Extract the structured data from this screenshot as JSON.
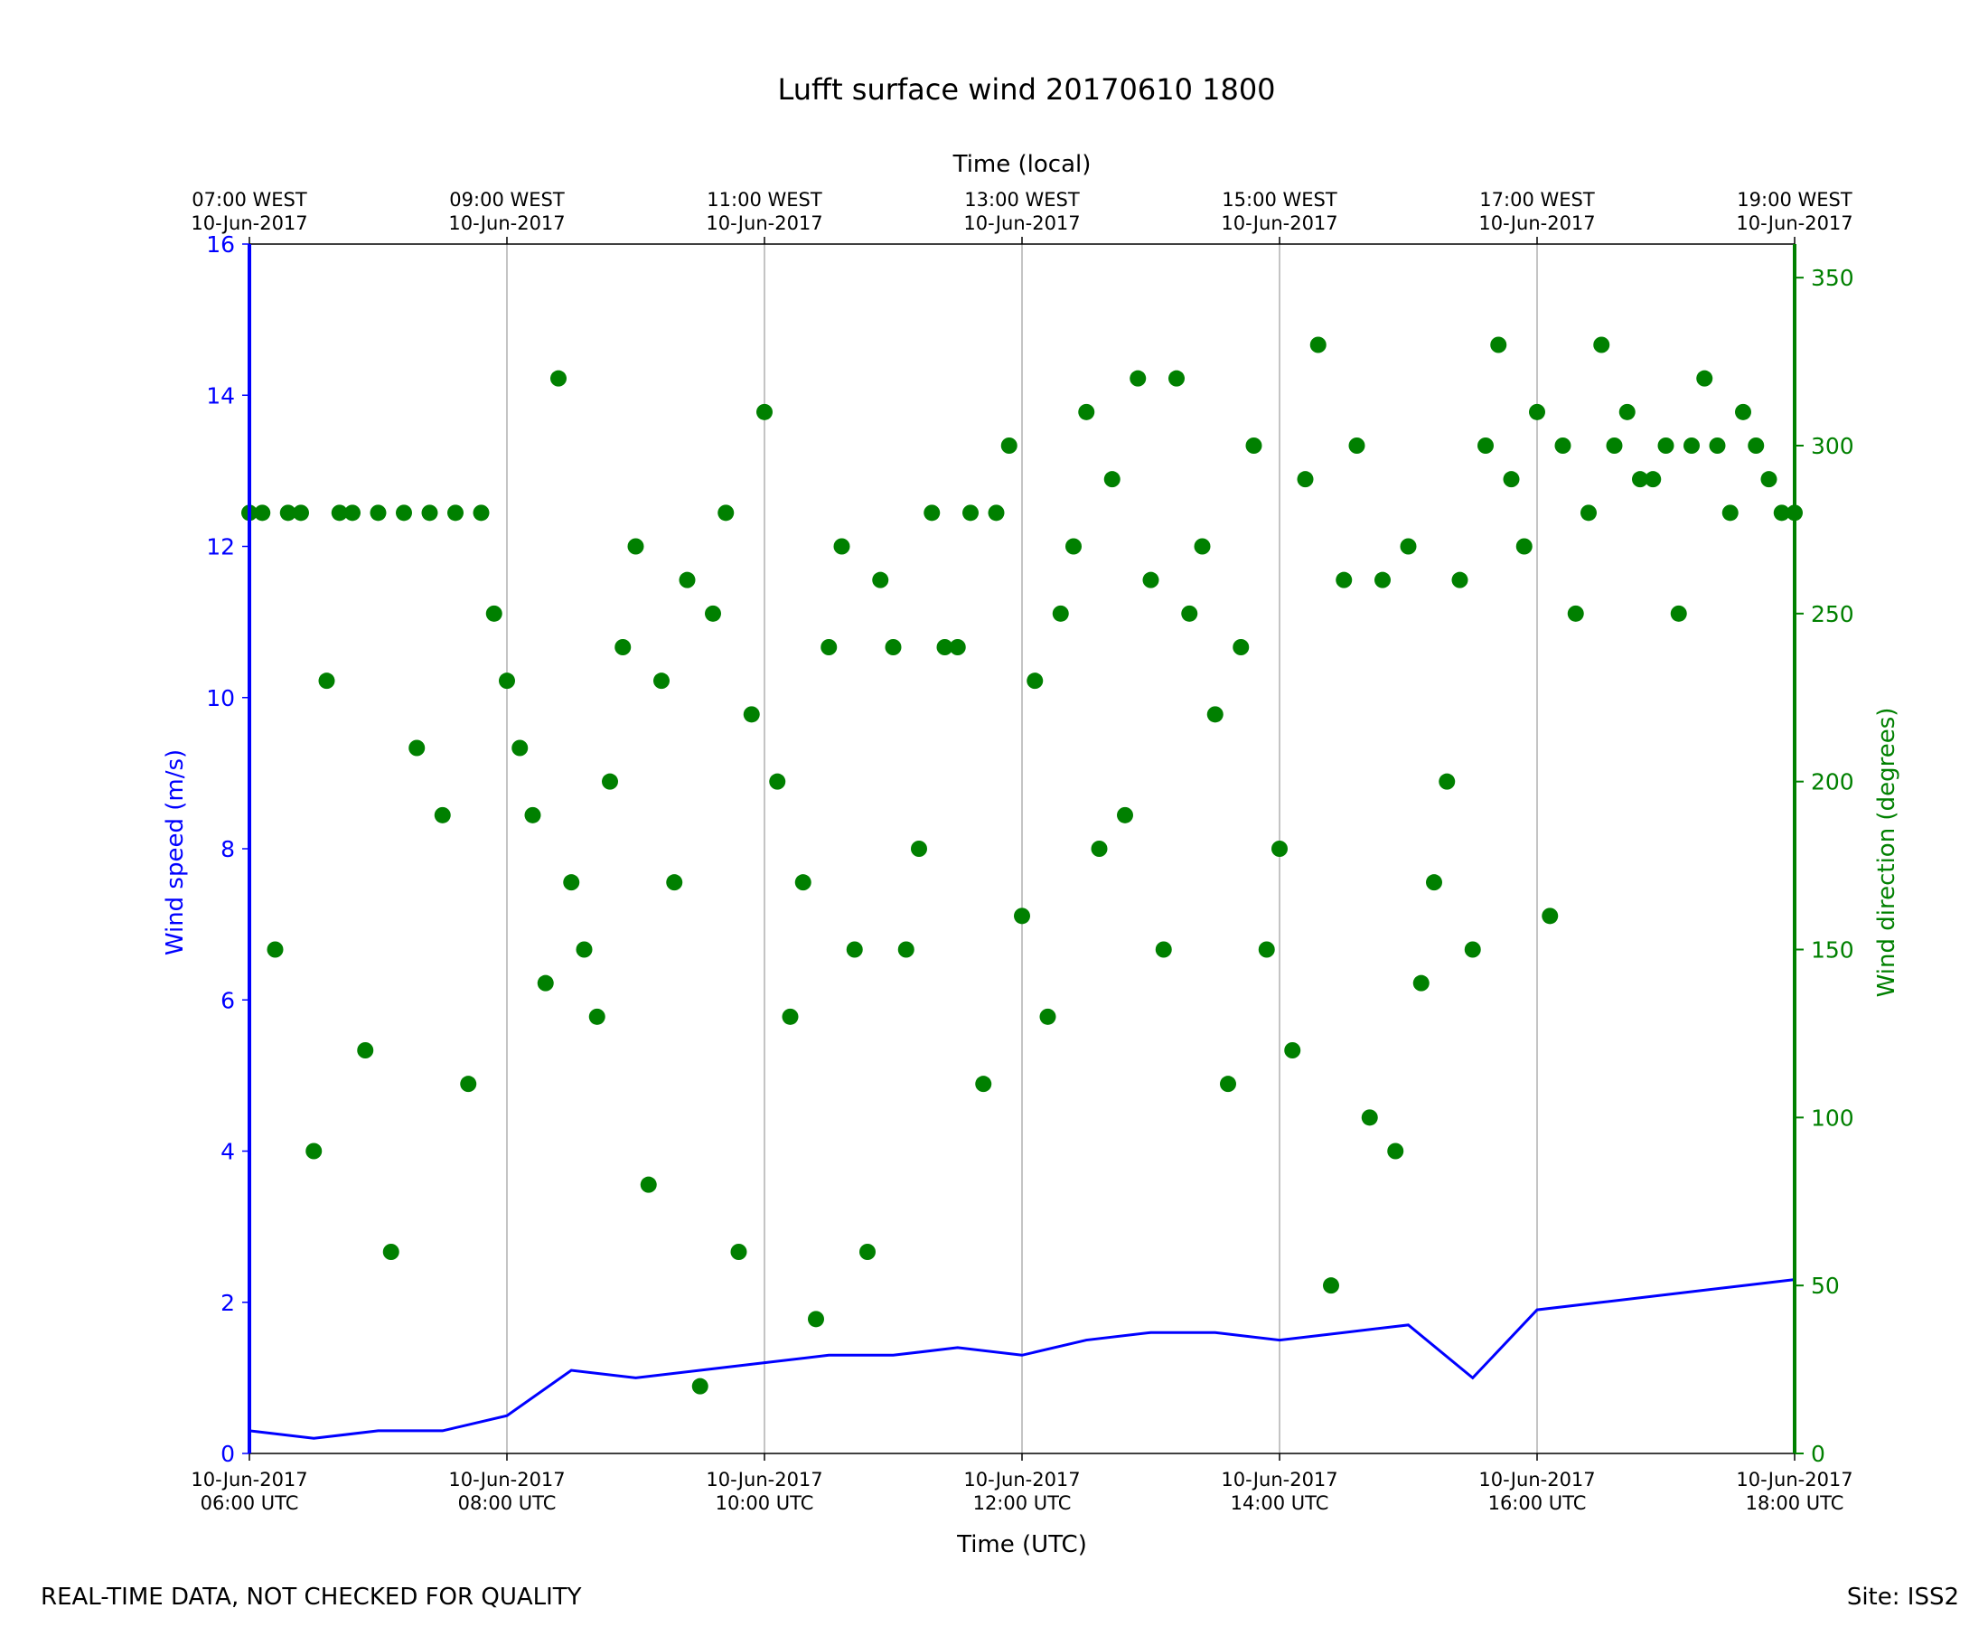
{
  "chart_data": {
    "type": "line+scatter",
    "title": "Lufft surface wind 20170610 1800",
    "x_axis": {
      "label": "Time (UTC)",
      "range_utc": [
        "2017-06-10 06:00",
        "2017-06-10 18:00"
      ],
      "ticks": [
        {
          "date": "10-Jun-2017",
          "time": "06:00 UTC"
        },
        {
          "date": "10-Jun-2017",
          "time": "08:00 UTC"
        },
        {
          "date": "10-Jun-2017",
          "time": "10:00 UTC"
        },
        {
          "date": "10-Jun-2017",
          "time": "12:00 UTC"
        },
        {
          "date": "10-Jun-2017",
          "time": "14:00 UTC"
        },
        {
          "date": "10-Jun-2017",
          "time": "16:00 UTC"
        },
        {
          "date": "10-Jun-2017",
          "time": "18:00 UTC"
        }
      ],
      "grid": true
    },
    "x2_axis": {
      "label": "Time (local)",
      "ticks": [
        {
          "time": "07:00 WEST",
          "date": "10-Jun-2017"
        },
        {
          "time": "09:00 WEST",
          "date": "10-Jun-2017"
        },
        {
          "time": "11:00 WEST",
          "date": "10-Jun-2017"
        },
        {
          "time": "13:00 WEST",
          "date": "10-Jun-2017"
        },
        {
          "time": "15:00 WEST",
          "date": "10-Jun-2017"
        },
        {
          "time": "17:00 WEST",
          "date": "10-Jun-2017"
        },
        {
          "time": "19:00 WEST",
          "date": "10-Jun-2017"
        }
      ]
    },
    "y_axis": {
      "label": "Wind speed (m/s)",
      "range": [
        0,
        16
      ],
      "ticks": [
        0,
        2,
        4,
        6,
        8,
        10,
        12,
        14,
        16
      ],
      "color": "#0000ff"
    },
    "y2_axis": {
      "label": "Wind direction (degrees)",
      "range": [
        0,
        360
      ],
      "ticks": [
        0,
        50,
        100,
        150,
        200,
        250,
        300,
        350
      ],
      "color": "#008000"
    },
    "series": [
      {
        "name": "Wind speed (m/s)",
        "type": "line",
        "color": "#0000ff",
        "axis": "left",
        "x_hours_utc": [
          6.0,
          6.5,
          7.0,
          7.5,
          8.0,
          8.5,
          9.0,
          9.5,
          10.0,
          10.5,
          11.0,
          11.5,
          12.0,
          12.5,
          13.0,
          13.5,
          14.0,
          14.5,
          15.0,
          15.5,
          16.0,
          16.5,
          17.0,
          17.5,
          18.0
        ],
        "values": [
          0.3,
          0.2,
          0.3,
          0.3,
          0.5,
          1.1,
          1.0,
          1.1,
          1.2,
          1.3,
          1.3,
          1.4,
          1.3,
          1.5,
          1.6,
          1.6,
          1.5,
          1.6,
          1.7,
          1.0,
          1.9,
          2.0,
          2.1,
          2.2,
          2.3
        ]
      },
      {
        "name": "Wind direction (degrees)",
        "type": "scatter",
        "color": "#008000",
        "axis": "right",
        "x_hours_utc": [
          6.0,
          6.1,
          6.2,
          6.3,
          6.4,
          6.5,
          6.6,
          6.7,
          6.8,
          6.9,
          7.0,
          7.1,
          7.2,
          7.3,
          7.4,
          7.5,
          7.6,
          7.7,
          7.8,
          7.9,
          8.0,
          8.1,
          8.2,
          8.3,
          8.4,
          8.5,
          8.6,
          8.7,
          8.8,
          8.9,
          9.0,
          9.1,
          9.2,
          9.3,
          9.4,
          9.5,
          9.6,
          9.7,
          9.8,
          9.9,
          10.0,
          10.1,
          10.2,
          10.3,
          10.4,
          10.5,
          10.6,
          10.7,
          10.8,
          10.9,
          11.0,
          11.1,
          11.2,
          11.3,
          11.4,
          11.5,
          11.6,
          11.7,
          11.8,
          11.9,
          12.0,
          12.1,
          12.2,
          12.3,
          12.4,
          12.5,
          12.6,
          12.7,
          12.8,
          12.9,
          13.0,
          13.1,
          13.2,
          13.3,
          13.4,
          13.5,
          13.6,
          13.7,
          13.8,
          13.9,
          14.0,
          14.1,
          14.2,
          14.3,
          14.4,
          14.5,
          14.6,
          14.7,
          14.8,
          14.9,
          15.0,
          15.1,
          15.2,
          15.3,
          15.4,
          15.5,
          15.6,
          15.7,
          15.8,
          15.9,
          16.0,
          16.1,
          16.2,
          16.3,
          16.4,
          16.5,
          16.6,
          16.7,
          16.8,
          16.9,
          17.0,
          17.1,
          17.2,
          17.3,
          17.4,
          17.5,
          17.6,
          17.7,
          17.8,
          17.9,
          18.0
        ],
        "values": [
          280,
          280,
          150,
          280,
          280,
          90,
          230,
          280,
          280,
          120,
          280,
          60,
          280,
          210,
          280,
          190,
          280,
          110,
          280,
          250,
          230,
          210,
          190,
          140,
          320,
          170,
          150,
          130,
          200,
          240,
          270,
          80,
          230,
          170,
          260,
          20,
          250,
          280,
          60,
          220,
          310,
          200,
          130,
          170,
          40,
          240,
          270,
          150,
          60,
          260,
          240,
          150,
          180,
          280,
          240,
          240,
          280,
          110,
          280,
          300,
          160,
          230,
          130,
          250,
          270,
          310,
          180,
          290,
          190,
          320,
          260,
          150,
          320,
          250,
          270,
          220,
          110,
          240,
          300,
          150,
          180,
          120,
          290,
          330,
          50,
          260,
          300,
          100,
          260,
          90,
          270,
          140,
          170,
          200,
          260,
          150,
          300,
          330,
          290,
          270,
          310,
          160,
          300,
          250,
          280,
          330,
          300,
          310,
          290,
          290,
          300,
          250,
          300,
          320,
          300,
          280,
          310,
          300,
          290,
          280,
          280
        ]
      }
    ]
  },
  "footer": {
    "note": "REAL-TIME DATA, NOT CHECKED FOR QUALITY",
    "site": "Site: ISS2"
  }
}
